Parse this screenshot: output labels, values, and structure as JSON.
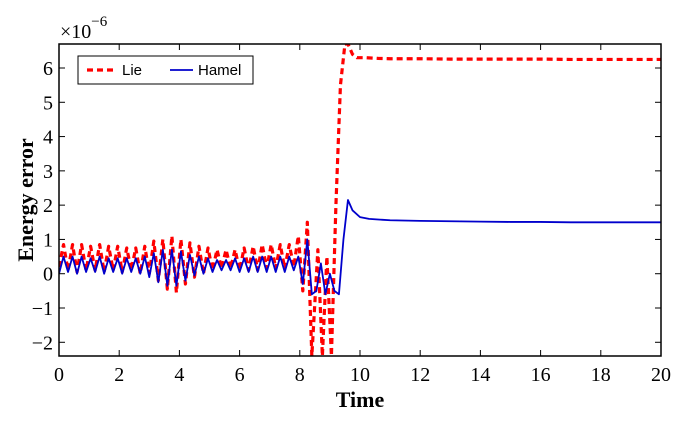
{
  "chart_data": {
    "type": "line",
    "xlabel": "Time",
    "ylabel": "Energy error",
    "y_multiplier": {
      "base": "×10",
      "exponent": "−6"
    },
    "xlim": [
      0,
      20
    ],
    "ylim": [
      -2.4,
      6.7
    ],
    "xticks": [
      0,
      2,
      4,
      6,
      8,
      10,
      12,
      14,
      16,
      18,
      20
    ],
    "xtick_labels": [
      "0",
      "2",
      "4",
      "6",
      "8",
      "10",
      "12",
      "14",
      "16",
      "18",
      "20"
    ],
    "yticks": [
      -2,
      -1,
      0,
      1,
      2,
      3,
      4,
      5,
      6
    ],
    "ytick_labels": [
      "−2",
      "−1",
      "0",
      "1",
      "2",
      "3",
      "4",
      "5",
      "6"
    ],
    "grid": false,
    "legend_position": "top-left",
    "series": [
      {
        "name": "Lie",
        "color": "#ff0000",
        "style": "dashed",
        "x": [
          0.0,
          0.15,
          0.3,
          0.45,
          0.6,
          0.75,
          0.9,
          1.05,
          1.2,
          1.35,
          1.5,
          1.65,
          1.8,
          1.95,
          2.1,
          2.25,
          2.4,
          2.55,
          2.7,
          2.85,
          3.0,
          3.15,
          3.3,
          3.45,
          3.6,
          3.75,
          3.9,
          4.05,
          4.2,
          4.35,
          4.5,
          4.65,
          4.8,
          4.95,
          5.1,
          5.25,
          5.4,
          5.55,
          5.7,
          5.85,
          6.0,
          6.15,
          6.3,
          6.45,
          6.6,
          6.75,
          6.9,
          7.05,
          7.2,
          7.35,
          7.5,
          7.65,
          7.8,
          7.95,
          8.1,
          8.25,
          8.4,
          8.6,
          8.75,
          8.9,
          9.05,
          9.2,
          9.35,
          9.5,
          9.6,
          9.75,
          9.9,
          10.2,
          10.6,
          11,
          12,
          13,
          14,
          15,
          16,
          17,
          18,
          19,
          20
        ],
        "y": [
          0.2,
          0.85,
          0.1,
          0.85,
          0.05,
          0.85,
          0.1,
          0.8,
          0.1,
          0.85,
          0.05,
          0.8,
          0.1,
          0.8,
          0.05,
          0.75,
          0.1,
          0.75,
          0.0,
          0.8,
          0.0,
          0.95,
          -0.2,
          1.0,
          -0.45,
          1.1,
          -0.55,
          1.0,
          -0.3,
          0.9,
          -0.1,
          0.8,
          0.0,
          0.75,
          0.1,
          0.7,
          0.15,
          0.7,
          0.15,
          0.7,
          0.1,
          0.75,
          0.1,
          0.8,
          0.1,
          0.85,
          0.15,
          0.85,
          0.15,
          0.85,
          0.15,
          0.85,
          0.2,
          1.1,
          -0.5,
          1.5,
          -2.4,
          0.7,
          -2.4,
          0.5,
          -2.4,
          2.0,
          5.5,
          6.7,
          6.7,
          6.4,
          6.3,
          6.3,
          6.28,
          6.27,
          6.27,
          6.26,
          6.26,
          6.26,
          6.26,
          6.25,
          6.25,
          6.25,
          6.25
        ]
      },
      {
        "name": "Hamel",
        "color": "#0000cc",
        "style": "solid",
        "x": [
          0.0,
          0.15,
          0.3,
          0.45,
          0.6,
          0.75,
          0.9,
          1.05,
          1.2,
          1.35,
          1.5,
          1.65,
          1.8,
          1.95,
          2.1,
          2.25,
          2.4,
          2.55,
          2.7,
          2.85,
          3.0,
          3.15,
          3.3,
          3.45,
          3.6,
          3.75,
          3.9,
          4.05,
          4.2,
          4.35,
          4.5,
          4.65,
          4.8,
          4.95,
          5.1,
          5.25,
          5.4,
          5.55,
          5.7,
          5.85,
          6.0,
          6.15,
          6.3,
          6.45,
          6.6,
          6.75,
          6.9,
          7.05,
          7.2,
          7.35,
          7.5,
          7.65,
          7.8,
          7.95,
          8.1,
          8.25,
          8.4,
          8.55,
          8.7,
          8.85,
          9.0,
          9.15,
          9.3,
          9.45,
          9.6,
          9.75,
          10.0,
          10.3,
          10.6,
          11,
          12,
          13,
          14,
          15,
          16,
          17,
          18,
          19,
          20
        ],
        "y": [
          0.0,
          0.5,
          0.05,
          0.5,
          0.0,
          0.5,
          0.05,
          0.45,
          0.05,
          0.5,
          0.0,
          0.45,
          0.05,
          0.45,
          0.0,
          0.45,
          0.05,
          0.45,
          0.0,
          0.5,
          -0.1,
          0.6,
          -0.25,
          0.7,
          -0.35,
          0.7,
          -0.35,
          0.65,
          -0.2,
          0.55,
          -0.05,
          0.5,
          0.0,
          0.45,
          0.05,
          0.4,
          0.1,
          0.4,
          0.1,
          0.45,
          0.05,
          0.45,
          0.05,
          0.5,
          0.05,
          0.5,
          0.05,
          0.5,
          0.05,
          0.5,
          0.05,
          0.5,
          0.1,
          0.5,
          -0.3,
          1.0,
          -0.6,
          -0.5,
          0.3,
          -0.6,
          0.0,
          -0.5,
          -0.6,
          1.0,
          2.15,
          1.85,
          1.65,
          1.6,
          1.58,
          1.56,
          1.54,
          1.53,
          1.52,
          1.51,
          1.51,
          1.5,
          1.5,
          1.5,
          1.5
        ]
      }
    ]
  }
}
